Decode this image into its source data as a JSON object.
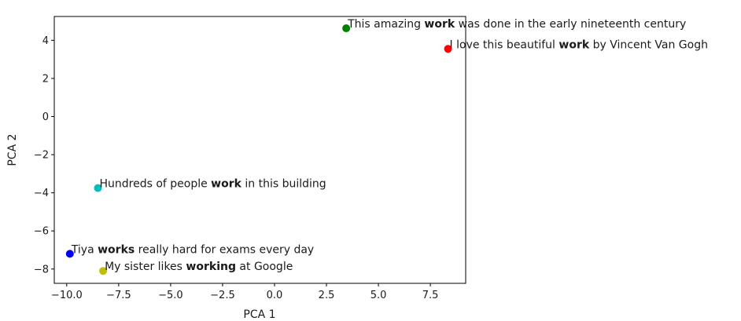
{
  "chart_data": {
    "type": "scatter",
    "xlabel": "PCA 1",
    "ylabel": "PCA 2",
    "xlim": [
      -10.6,
      9.2
    ],
    "ylim": [
      -8.75,
      5.25
    ],
    "xticks": [
      -10.0,
      -7.5,
      -5.0,
      -2.5,
      0.0,
      2.5,
      5.0,
      7.5
    ],
    "xtick_labels": [
      "−10.0",
      "−7.5",
      "−5.0",
      "−2.5",
      "0.0",
      "2.5",
      "5.0",
      "7.5"
    ],
    "yticks": [
      -8,
      -6,
      -4,
      -2,
      0,
      2,
      4
    ],
    "ytick_labels": [
      "−8",
      "−6",
      "−4",
      "−2",
      "0",
      "2",
      "4"
    ],
    "grid": false,
    "points": [
      {
        "x": 3.45,
        "y": 4.63,
        "color": "#008000",
        "label": {
          "pre": "This amazing ",
          "kw": "work",
          "post": " was done in the early nineteenth century"
        }
      },
      {
        "x": 8.35,
        "y": 3.55,
        "color": "#ff0000",
        "label": {
          "pre": "I love this beautiful ",
          "kw": "work",
          "post": " by Vincent Van Gogh"
        }
      },
      {
        "x": -8.5,
        "y": -3.75,
        "color": "#00bfbf",
        "label": {
          "pre": "Hundreds of people ",
          "kw": "work",
          "post": " in this building"
        }
      },
      {
        "x": -9.85,
        "y": -7.2,
        "color": "#0000ff",
        "label": {
          "pre": "Tiya ",
          "kw": "works",
          "post": " really hard for exams every day"
        }
      },
      {
        "x": -8.25,
        "y": -8.1,
        "color": "#bfbf00",
        "label": {
          "pre": "My sister likes ",
          "kw": "working",
          "post": " at Google"
        }
      }
    ]
  }
}
